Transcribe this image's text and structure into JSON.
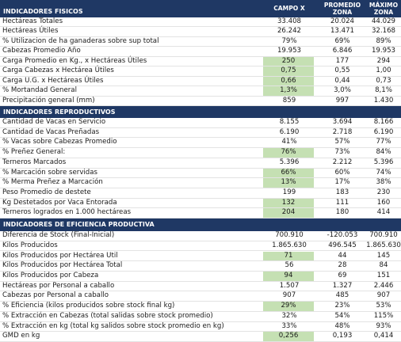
{
  "columns": [
    "CAMPO X",
    "PROMEDIO ZONA",
    "MÁXIMO ZONA"
  ],
  "sections": [
    {
      "title": "INDICADORES FISICOS",
      "rows": [
        [
          "Hectáreas Totales",
          "33.408",
          "20.024",
          "44.029"
        ],
        [
          "Hectáreas Útiles",
          "26.242",
          "13.471",
          "32.168"
        ],
        [
          "% Utilizacion de ha ganaderas sobre sup total",
          "79%",
          "69%",
          "89%"
        ],
        [
          "Cabezas Promedio Año",
          "19.953",
          "6.846",
          "19.953"
        ],
        [
          "Carga Promedio en Kg., x Hectáreas Útiles",
          "250",
          "177",
          "294"
        ],
        [
          "Carga Cabezas x Hectárea Útiles",
          "0,75",
          "0,55",
          "1,00"
        ],
        [
          "Carga U.G. x Hectáreas Útiles",
          "0,66",
          "0,44",
          "0,73"
        ],
        [
          "% Mortandad General",
          "1,3%",
          "3,0%",
          "8,1%"
        ],
        [
          "Precipitación general (mm)",
          "859",
          "997",
          "1.430"
        ]
      ]
    },
    {
      "title": "INDICADORES REPRODUCTIVOS",
      "rows": [
        [
          "Cantidad de Vacas en Servicio",
          "8.155",
          "3.694",
          "8.166"
        ],
        [
          "Cantidad de Vacas Preñadas",
          "6.190",
          "2.718",
          "6.190"
        ],
        [
          "% Vacas sobre Cabezas Promedio",
          "41%",
          "57%",
          "77%"
        ],
        [
          "% Preñez General:",
          "76%",
          "73%",
          "84%"
        ],
        [
          "Terneros Marcados",
          "5.396",
          "2.212",
          "5.396"
        ],
        [
          "% Marcación sobre servidas",
          "66%",
          "60%",
          "74%"
        ],
        [
          "% Merma Preñez a Marcación",
          "13%",
          "17%",
          "38%"
        ],
        [
          "Peso Promedio de destete",
          "199",
          "183",
          "230"
        ],
        [
          "Kg Destetados por Vaca Entorada",
          "132",
          "111",
          "160"
        ],
        [
          "Terneros logrados en 1.000 hectáreas",
          "204",
          "180",
          "414"
        ]
      ]
    },
    {
      "title": "INDICADORES DE EFICIENCIA PRODUCTIVA",
      "rows": [
        [
          "Diferencia de Stock (Final-Inicial)",
          "700.910",
          "-120.053",
          "700.910"
        ],
        [
          "Kilos Producidos",
          "1.865.630",
          "496.545",
          "1.865.630"
        ],
        [
          "Kilos Producidos por Hectárea Util",
          "71",
          "44",
          "145"
        ],
        [
          "Kilos Producidos por Hectárea Total",
          "56",
          "28",
          "84"
        ],
        [
          "Kilos Producidos por Cabeza",
          "94",
          "69",
          "151"
        ],
        [
          "Hectáreas por Personal a caballo",
          "1.507",
          "1.327",
          "2.446"
        ],
        [
          "Cabezas por Personal a caballo",
          "907",
          "485",
          "907"
        ],
        [
          "% Eficiencia (kilos producidos sobre stock final kg)",
          "29%",
          "23%",
          "53%"
        ],
        [
          "% Extracción en Cabezas (total salidas sobre stock promedio)",
          "32%",
          "54%",
          "115%"
        ],
        [
          "% Extracción en kg (total kg salidos sobre stock promedio en kg)",
          "33%",
          "48%",
          "93%"
        ],
        [
          "GMD en kg",
          "0,256",
          "0,193",
          "0,414"
        ]
      ]
    }
  ]
}
